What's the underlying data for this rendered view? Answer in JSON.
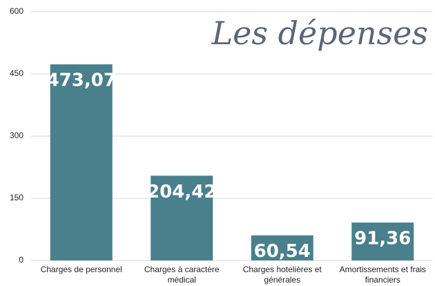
{
  "chart_data": {
    "type": "bar",
    "title": "Les dépenses",
    "categories": [
      "Charges de personnel",
      "Charges à caractère médical",
      "Charges hotelières et générales",
      "Amortissements et frais financiers"
    ],
    "values": [
      473.07,
      204.42,
      60.54,
      91.36
    ],
    "value_labels": [
      "473,07",
      "204,42",
      "60,54",
      "91,36"
    ],
    "color": "#4a7f8c",
    "ylim": [
      0,
      600
    ],
    "yticks": [
      0,
      150,
      300,
      450,
      600
    ],
    "grid": true
  }
}
